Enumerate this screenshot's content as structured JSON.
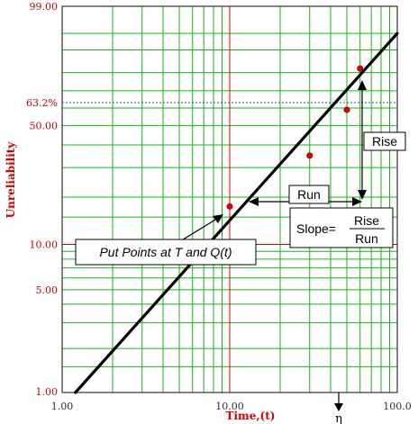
{
  "chart_data": {
    "type": "scatter",
    "subtype": "weibull-probability-plot",
    "x_scale": "log",
    "y_scale": "weibull",
    "xlim": [
      1.0,
      100.0
    ],
    "ylim": [
      1.0,
      99.0
    ],
    "x_tick_labels": [
      "1.00",
      "10.00",
      "100.0"
    ],
    "y_tick_labels": [
      "99.00",
      "63.2%",
      "50.00",
      "10.00",
      "5.00",
      "1.00"
    ],
    "y_tick_values": [
      99.0,
      63.2,
      50.0,
      10.0,
      5.0,
      1.0
    ],
    "xlabel": "Time,(t)",
    "ylabel": "Unreliability",
    "grid": true,
    "points": [
      {
        "x": 10.0,
        "y": 17.5
      },
      {
        "x": 30.0,
        "y": 35.0
      },
      {
        "x": 50.0,
        "y": 59.0
      },
      {
        "x": 60.0,
        "y": 82.0
      }
    ],
    "fit_line": {
      "x": [
        1.2,
        100.0
      ],
      "y": [
        1.0,
        95.0
      ]
    },
    "reference_lines": {
      "eta_level_y": 63.2,
      "vertical_red_x": 10.0,
      "horizontal_red_y": 10.0
    },
    "annotations": {
      "put_points": "Put Points at T and Q(t)",
      "run": "Run",
      "rise": "Rise",
      "slope_prefix": "Slope=",
      "slope_num": "Rise",
      "slope_den": "Run",
      "eta": "η"
    },
    "colors": {
      "grid": "#18b418",
      "frame": "#333333",
      "points": "#e00000",
      "fit_line": "#000000",
      "ref_red": "#e00000",
      "eta_dotted": "#2040ff"
    }
  }
}
